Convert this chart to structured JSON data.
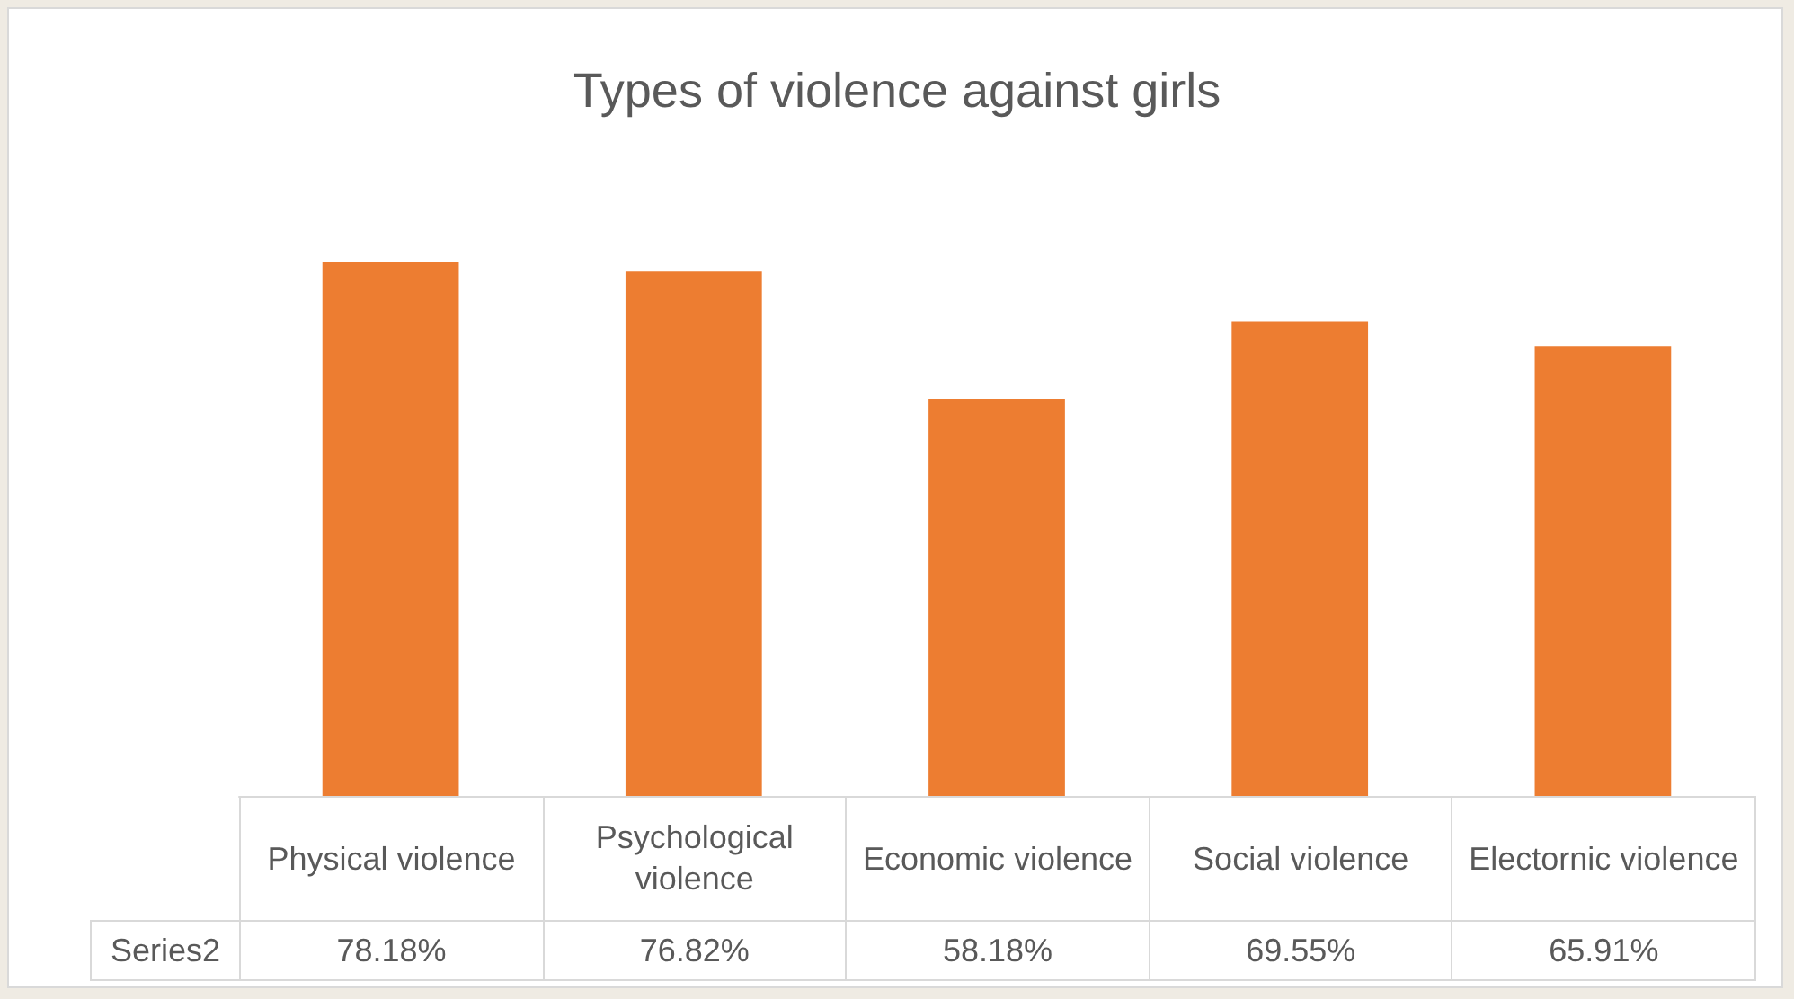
{
  "chart_data": {
    "type": "bar",
    "title": "Types of violence against girls",
    "categories": [
      "Physical violence",
      "Psychological violence",
      "Economic violence",
      "Social violence",
      "Electornic violence"
    ],
    "series": [
      {
        "name": "Series2",
        "color": "#ed7d31",
        "values": [
          78.18,
          76.82,
          58.18,
          69.55,
          65.91
        ],
        "value_labels": [
          "78.18%",
          "76.82%",
          "58.18%",
          "69.55%",
          "65.91%"
        ]
      }
    ],
    "legend": false
  }
}
